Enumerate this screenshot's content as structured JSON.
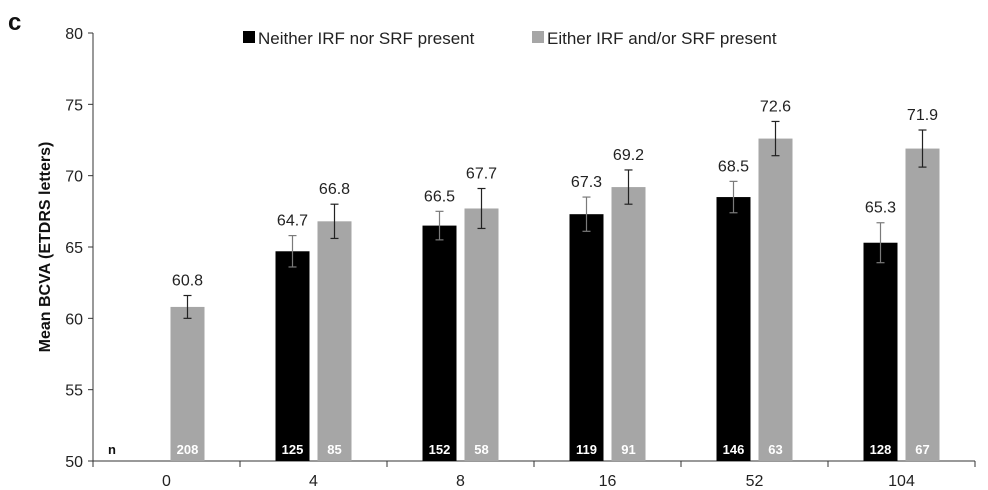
{
  "panel_label": "c",
  "n_marker": "n",
  "colors": {
    "neither": "#000000",
    "either": "#a6a6a6",
    "axis": "#333333",
    "error_bar": "#222222"
  },
  "chart_data": {
    "type": "bar",
    "categories": [
      "0",
      "4",
      "8",
      "16",
      "52",
      "104"
    ],
    "ylabel": "Mean BCVA (ETDRS letters)",
    "xlabel": "",
    "ylim": [
      50,
      80
    ],
    "yticks": [
      50,
      55,
      60,
      65,
      70,
      75,
      80
    ],
    "grid": false,
    "legend_position": "top",
    "series": [
      {
        "name": "Neither IRF nor SRF present",
        "values": [
          null,
          64.7,
          66.5,
          67.3,
          68.5,
          65.3
        ],
        "value_labels": [
          "",
          "64.7",
          "66.5",
          "67.3",
          "68.5",
          "65.3"
        ],
        "error_low": [
          null,
          63.6,
          65.5,
          66.1,
          67.4,
          63.9
        ],
        "error_high": [
          null,
          65.8,
          67.5,
          68.5,
          69.6,
          66.7
        ],
        "n": [
          "",
          "125",
          "152",
          "119",
          "146",
          "128"
        ]
      },
      {
        "name": "Either IRF and/or SRF present",
        "values": [
          60.8,
          66.8,
          67.7,
          69.2,
          72.6,
          71.9
        ],
        "value_labels": [
          "60.8",
          "66.8",
          "67.7",
          "69.2",
          "72.6",
          "71.9"
        ],
        "error_low": [
          60.0,
          65.6,
          66.3,
          68.0,
          71.4,
          70.6
        ],
        "error_high": [
          61.6,
          68.0,
          69.1,
          70.4,
          73.8,
          73.2
        ],
        "n": [
          "208",
          "85",
          "58",
          "91",
          "63",
          "67"
        ]
      }
    ]
  }
}
